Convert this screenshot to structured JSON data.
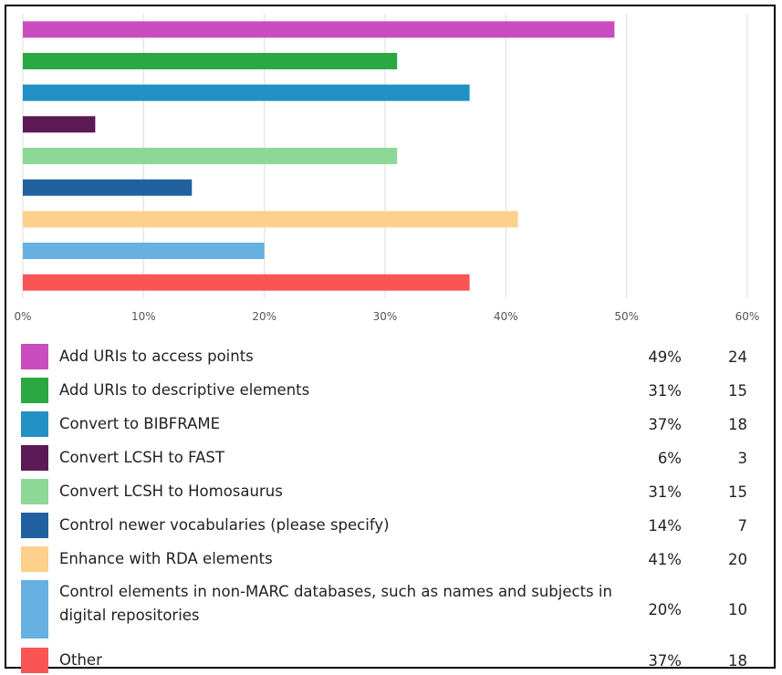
{
  "chart_data": {
    "type": "bar",
    "orientation": "horizontal",
    "xlim": [
      0,
      60
    ],
    "xticks": [
      "0%",
      "10%",
      "20%",
      "30%",
      "40%",
      "50%",
      "60%"
    ],
    "grid": true,
    "legend_position": "bottom",
    "categories": [
      "Add URIs to access points",
      "Add URIs to descriptive elements",
      "Convert to BIBFRAME",
      "Convert LCSH to FAST",
      "Convert LCSH to Homosaurus",
      "Control newer vocabularies (please specify)",
      "Enhance with RDA elements",
      "Control elements in non-MARC databases, such as names and subjects in digital repositories",
      "Other"
    ],
    "values": [
      49,
      31,
      37,
      6,
      31,
      14,
      41,
      20,
      37
    ],
    "percent_labels": [
      "49%",
      "31%",
      "37%",
      "6%",
      "31%",
      "14%",
      "41%",
      "20%",
      "37%"
    ],
    "counts": [
      "24",
      "15",
      "18",
      "3",
      "15",
      "7",
      "20",
      "10",
      "18"
    ],
    "colors": [
      "#c94dbf",
      "#2aa841",
      "#2190c4",
      "#5b1a55",
      "#8ed897",
      "#2261a0",
      "#fdd08c",
      "#66b0e2",
      "#fa5555"
    ]
  }
}
